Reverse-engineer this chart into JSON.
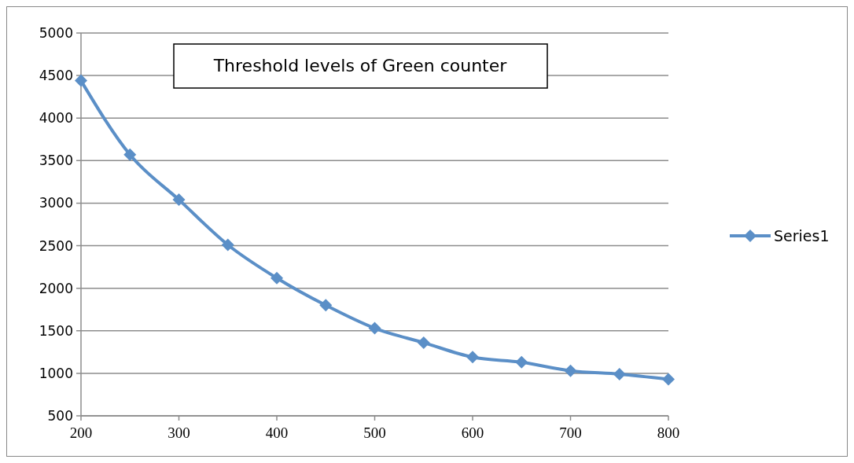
{
  "chart_data": {
    "type": "line",
    "title": "Threshold levels of Green counter",
    "x": [
      200,
      250,
      300,
      350,
      400,
      450,
      500,
      550,
      600,
      650,
      700,
      750,
      800
    ],
    "series": [
      {
        "name": "Series1",
        "color": "#5b8fc7",
        "values": [
          4440,
          3570,
          3040,
          2510,
          2120,
          1800,
          1530,
          1360,
          1190,
          1130,
          1030,
          990,
          930
        ]
      }
    ],
    "xlim": [
      200,
      800
    ],
    "xticks": [
      200,
      300,
      400,
      500,
      600,
      700,
      800
    ],
    "ylim": [
      500,
      5000
    ],
    "yticks": [
      500,
      1000,
      1500,
      2000,
      2500,
      3000,
      3500,
      4000,
      4500,
      5000
    ],
    "grid": "y",
    "legend": "right",
    "marker": "diamond",
    "line_style": "solid"
  }
}
